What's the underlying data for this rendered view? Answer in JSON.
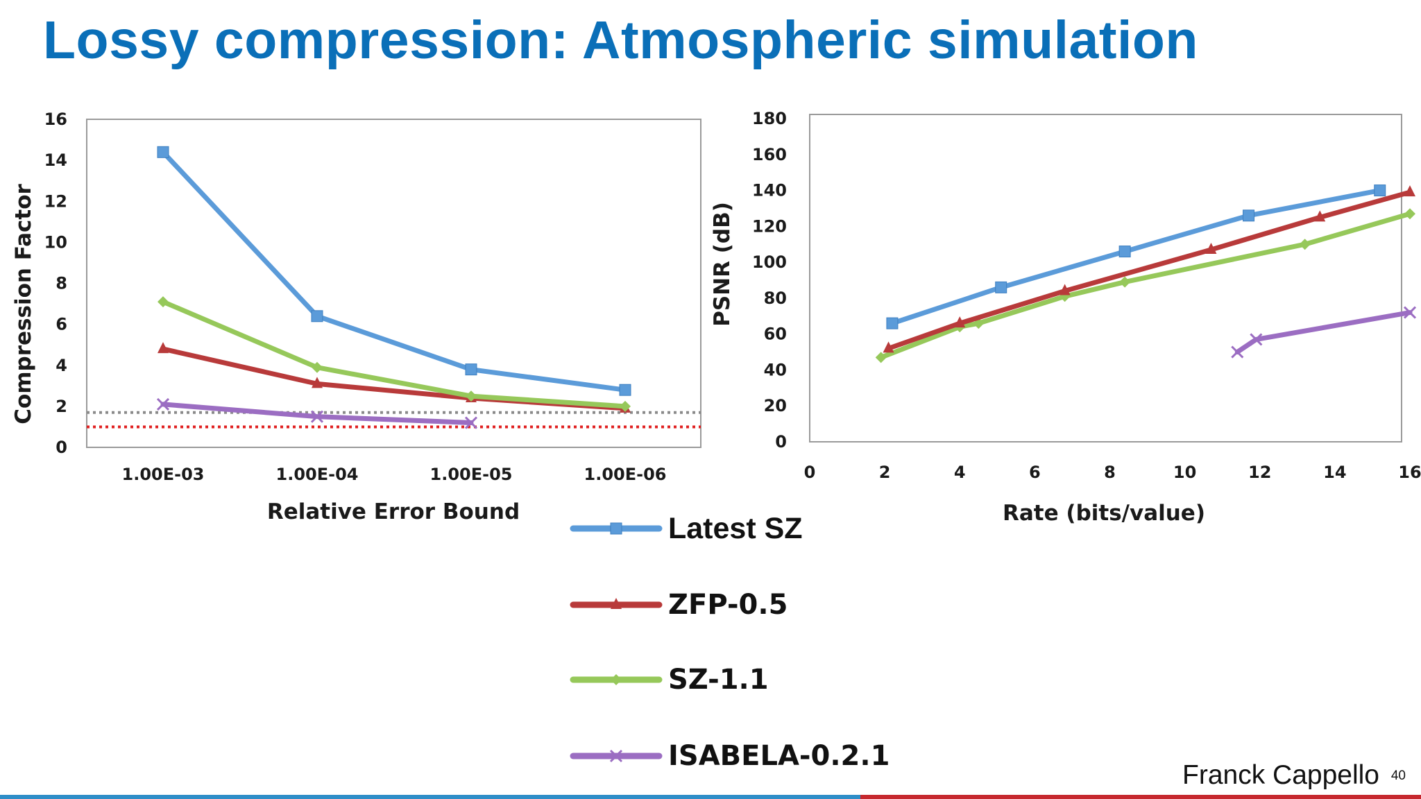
{
  "slide": {
    "title": "Lossy compression: Atmospheric simulation",
    "author": "Franck Cappello",
    "page_number": "40"
  },
  "colors": {
    "title": "#0a6fb8",
    "latest_sz": "#5b9bd9",
    "zfp": "#b83a3a",
    "sz11": "#96c85a",
    "isabela": "#9b6dc2",
    "ref_gray": "#8a8a8a",
    "ref_red": "#e02020",
    "bar_blue": "#2f8ec8",
    "bar_red": "#c6282e"
  },
  "legend": [
    {
      "key": "latest_sz",
      "label": "Latest SZ",
      "marker": "square"
    },
    {
      "key": "zfp",
      "label": "ZFP-0.5",
      "marker": "triangle"
    },
    {
      "key": "sz11",
      "label": "SZ-1.1",
      "marker": "diamond"
    },
    {
      "key": "isabela",
      "label": "ISABELA-0.2.1",
      "marker": "cross"
    }
  ],
  "chart_data": [
    {
      "type": "line",
      "xlabel": "Relative Error Bound",
      "ylabel": "Compression Factor",
      "categories": [
        "1.00E-03",
        "1.00E-04",
        "1.00E-05",
        "1.00E-06"
      ],
      "ylim": [
        0,
        16
      ],
      "yticks": [
        0,
        2,
        4,
        6,
        8,
        10,
        12,
        14,
        16
      ],
      "grid": false,
      "series": [
        {
          "name": "Latest SZ",
          "key": "latest_sz",
          "values": [
            14.4,
            6.4,
            3.8,
            2.8
          ]
        },
        {
          "name": "ZFP-0.5",
          "key": "zfp",
          "values": [
            4.8,
            3.1,
            2.4,
            1.9
          ]
        },
        {
          "name": "SZ-1.1",
          "key": "sz11",
          "values": [
            7.1,
            3.9,
            2.5,
            2.0
          ]
        },
        {
          "name": "ISABELA-0.2.1",
          "key": "isabela",
          "values": [
            2.1,
            1.5,
            1.2,
            null
          ]
        }
      ],
      "reference_lines": [
        {
          "y": 1.7,
          "color": "gray",
          "style": "dotted"
        },
        {
          "y": 1.0,
          "color": "red",
          "style": "dotted"
        }
      ]
    },
    {
      "type": "line",
      "xlabel": "Rate (bits/value)",
      "ylabel": "PSNR (dB)",
      "xlim": [
        0,
        16
      ],
      "ylim": [
        0,
        180
      ],
      "xticks": [
        0,
        2,
        4,
        6,
        8,
        10,
        12,
        14,
        16
      ],
      "yticks": [
        0,
        20,
        40,
        60,
        80,
        100,
        120,
        140,
        160,
        180
      ],
      "grid": false,
      "series": [
        {
          "name": "Latest SZ",
          "key": "latest_sz",
          "x": [
            2.2,
            5.1,
            8.4,
            11.7,
            15.2
          ],
          "y": [
            66,
            86,
            106,
            126,
            140
          ]
        },
        {
          "name": "ZFP-0.5",
          "key": "zfp",
          "x": [
            2.1,
            4.0,
            6.8,
            10.7,
            13.6,
            16.0
          ],
          "y": [
            52,
            66,
            84,
            107,
            125,
            139
          ]
        },
        {
          "name": "SZ-1.1",
          "key": "sz11",
          "x": [
            1.9,
            4.0,
            4.5,
            6.8,
            8.4,
            13.2,
            16.0
          ],
          "y": [
            47,
            64,
            66,
            81,
            89,
            110,
            127
          ]
        },
        {
          "name": "ISABELA-0.2.1",
          "key": "isabela",
          "x": [
            11.4,
            11.9,
            16.0
          ],
          "y": [
            50,
            57,
            72
          ]
        }
      ]
    }
  ]
}
